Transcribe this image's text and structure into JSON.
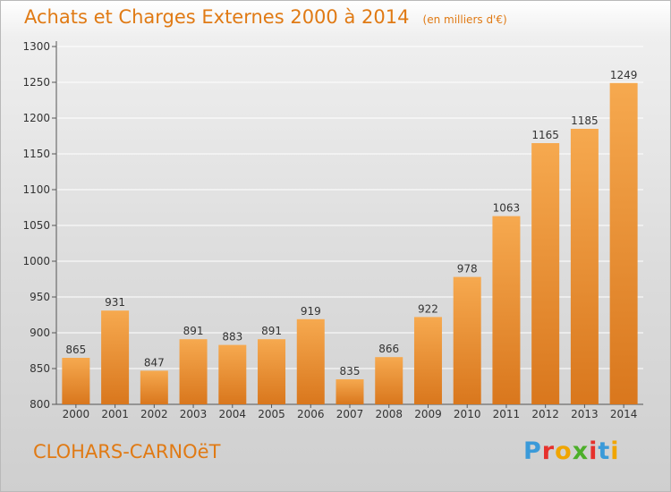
{
  "header": {
    "title": "Achats et Charges Externes 2000 à 2014",
    "subtitle": "(en milliers d'€)"
  },
  "footer": {
    "commune": "CLOHARS-CARNOëT",
    "logo_text": "Proxiti",
    "logo_colors": [
      "#3a9ad9",
      "#e6312c",
      "#f0a500",
      "#4caf2a",
      "#e6312c",
      "#3a9ad9",
      "#f0a500"
    ]
  },
  "colors": {
    "bar_light": "#f6a94f",
    "bar_dark": "#d9771d",
    "accent": "#e07a14"
  },
  "chart_data": {
    "type": "bar",
    "title": "Achats et Charges Externes 2000 à 2014",
    "subtitle": "(en milliers d'€)",
    "categories": [
      "2000",
      "2001",
      "2002",
      "2003",
      "2004",
      "2005",
      "2006",
      "2007",
      "2008",
      "2009",
      "2010",
      "2011",
      "2012",
      "2013",
      "2014"
    ],
    "values": [
      865,
      931,
      847,
      891,
      883,
      891,
      919,
      835,
      866,
      922,
      978,
      1063,
      1165,
      1185,
      1249
    ],
    "ylim": [
      800,
      1300
    ],
    "yticks": [
      800,
      850,
      900,
      950,
      1000,
      1050,
      1100,
      1150,
      1200,
      1250,
      1300
    ],
    "grid": true,
    "xlabel": "",
    "ylabel": ""
  }
}
